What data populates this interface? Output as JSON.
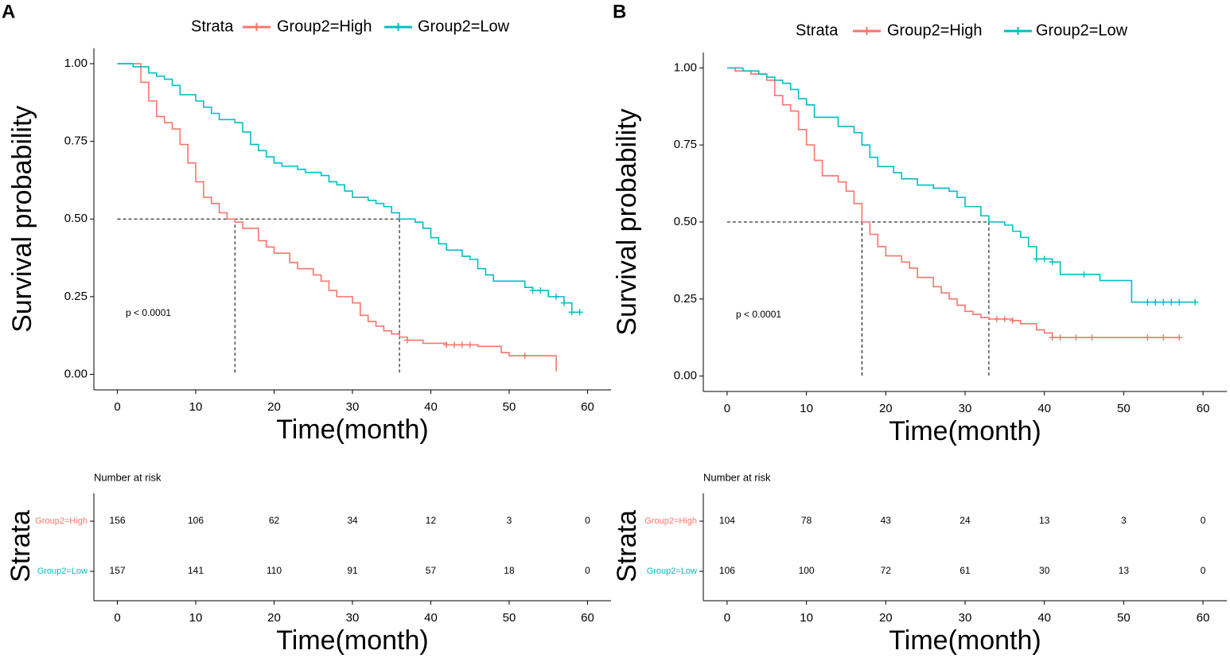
{
  "chart_data": [
    {
      "type": "km",
      "panel": "A",
      "legend_title": "Strata",
      "x_label": "Time(month)",
      "y_label": "Survival probability",
      "annotation": "p < 0.0001",
      "xlim": [
        -3,
        63
      ],
      "ylim": [
        -0.05,
        1.05
      ],
      "xticks": [
        0,
        10,
        20,
        30,
        40,
        50,
        60
      ],
      "yticks": [
        {
          "value": 0,
          "label": "0.00"
        },
        {
          "value": 0.25,
          "label": "0.25"
        },
        {
          "value": 0.5,
          "label": "0.50"
        },
        {
          "value": 0.75,
          "label": "0.75"
        },
        {
          "value": 1,
          "label": "1.00"
        }
      ],
      "median_level": 0.5,
      "median_x": [
        15,
        36
      ],
      "series": [
        {
          "name": "Group2=High",
          "color": "#F8766D",
          "x": [
            0,
            3,
            4,
            5,
            6,
            7,
            8,
            9,
            10,
            11,
            12,
            13,
            14,
            15,
            16,
            18,
            19,
            20,
            22,
            23,
            25,
            26,
            27,
            28,
            30,
            31,
            32,
            33,
            34,
            35,
            36,
            37,
            39,
            42,
            46,
            49,
            50,
            56,
            56
          ],
          "values": [
            1,
            0.94,
            0.88,
            0.83,
            0.81,
            0.79,
            0.74,
            0.68,
            0.62,
            0.57,
            0.55,
            0.52,
            0.5,
            0.49,
            0.47,
            0.43,
            0.41,
            0.39,
            0.36,
            0.34,
            0.32,
            0.3,
            0.27,
            0.25,
            0.23,
            0.19,
            0.17,
            0.155,
            0.14,
            0.13,
            0.12,
            0.11,
            0.1,
            0.095,
            0.09,
            0.07,
            0.06,
            0.06,
            0.01
          ],
          "censor_x": [
            37,
            42,
            43,
            44,
            45,
            52
          ]
        },
        {
          "name": "Group2=Low",
          "color": "#00BFC4",
          "x": [
            0,
            2,
            4,
            5,
            6,
            7,
            8,
            10,
            11,
            12,
            13,
            15,
            16,
            17,
            18,
            19,
            20,
            21,
            23,
            24,
            26,
            27,
            28,
            29,
            30,
            32,
            33,
            34,
            35,
            36,
            38,
            39,
            40,
            41,
            42,
            44,
            45,
            46,
            47,
            48,
            52,
            53,
            55,
            57,
            58,
            59
          ],
          "values": [
            1,
            0.99,
            0.97,
            0.96,
            0.95,
            0.93,
            0.9,
            0.88,
            0.86,
            0.84,
            0.82,
            0.81,
            0.78,
            0.74,
            0.72,
            0.7,
            0.68,
            0.67,
            0.66,
            0.65,
            0.64,
            0.62,
            0.61,
            0.59,
            0.57,
            0.56,
            0.55,
            0.54,
            0.52,
            0.5,
            0.49,
            0.47,
            0.44,
            0.42,
            0.4,
            0.38,
            0.37,
            0.34,
            0.32,
            0.3,
            0.28,
            0.27,
            0.25,
            0.23,
            0.2,
            0.2
          ],
          "censor_x": [
            53,
            54,
            56,
            57,
            58,
            59
          ]
        }
      ]
    },
    {
      "type": "risk_table",
      "title": "Number at risk",
      "x_label": "Time(month)",
      "y_label": "Strata",
      "xlim": [
        -3,
        63
      ],
      "xticks": [
        0,
        10,
        20,
        30,
        40,
        50,
        60
      ],
      "x": [
        0,
        10,
        20,
        30,
        40,
        50,
        60
      ],
      "series": [
        {
          "name": "Group2=High",
          "color": "#F8766D",
          "values": [
            156,
            106,
            62,
            34,
            12,
            3,
            0
          ]
        },
        {
          "name": "Group2=Low",
          "color": "#00BFC4",
          "values": [
            157,
            141,
            110,
            91,
            57,
            18,
            0
          ]
        }
      ]
    },
    {
      "type": "km",
      "panel": "B",
      "legend_title": "Strata",
      "x_label": "Time(month)",
      "y_label": "Survival probability",
      "annotation": "p < 0.0001",
      "xlim": [
        -3,
        63
      ],
      "ylim": [
        -0.05,
        1.05
      ],
      "xticks": [
        0,
        10,
        20,
        30,
        40,
        50,
        60
      ],
      "yticks": [
        {
          "value": 0,
          "label": "0.00"
        },
        {
          "value": 0.25,
          "label": "0.25"
        },
        {
          "value": 0.5,
          "label": "0.50"
        },
        {
          "value": 0.75,
          "label": "0.75"
        },
        {
          "value": 1,
          "label": "1.00"
        }
      ],
      "median_level": 0.5,
      "median_x": [
        17,
        33
      ],
      "series": [
        {
          "name": "Group2=High",
          "color": "#F8766D",
          "x": [
            0,
            1,
            3,
            5,
            6,
            7,
            8,
            9,
            10,
            11,
            12,
            14,
            15,
            16,
            17,
            18,
            19,
            20,
            22,
            23,
            24,
            26,
            27,
            28,
            29,
            30,
            31,
            32,
            33,
            36,
            37,
            39,
            40,
            41,
            57
          ],
          "values": [
            1,
            0.99,
            0.98,
            0.96,
            0.91,
            0.88,
            0.86,
            0.8,
            0.75,
            0.7,
            0.65,
            0.63,
            0.6,
            0.56,
            0.5,
            0.46,
            0.42,
            0.39,
            0.37,
            0.35,
            0.32,
            0.29,
            0.27,
            0.25,
            0.23,
            0.21,
            0.2,
            0.19,
            0.185,
            0.18,
            0.17,
            0.15,
            0.14,
            0.125,
            0.125
          ],
          "censor_x": [
            34,
            35,
            36,
            41,
            42,
            44,
            46,
            53,
            55,
            57
          ]
        },
        {
          "name": "Group2=Low",
          "color": "#00BFC4",
          "x": [
            0,
            2,
            4,
            5,
            6,
            7,
            8,
            9,
            10,
            11,
            14,
            16,
            17,
            18,
            19,
            21,
            22,
            24,
            26,
            28,
            29,
            30,
            32,
            33,
            35,
            36,
            37,
            38,
            39,
            41,
            42,
            47,
            51,
            59
          ],
          "values": [
            1,
            0.99,
            0.98,
            0.97,
            0.96,
            0.95,
            0.93,
            0.9,
            0.88,
            0.84,
            0.81,
            0.79,
            0.75,
            0.71,
            0.68,
            0.66,
            0.64,
            0.62,
            0.61,
            0.6,
            0.58,
            0.55,
            0.52,
            0.5,
            0.49,
            0.47,
            0.45,
            0.42,
            0.38,
            0.37,
            0.33,
            0.31,
            0.24,
            0.24
          ],
          "censor_x": [
            39,
            40,
            41,
            45,
            53,
            54,
            55,
            56,
            57,
            59
          ]
        }
      ]
    },
    {
      "type": "risk_table",
      "title": "Number at risk",
      "x_label": "Time(month)",
      "y_label": "Strata",
      "xlim": [
        -3,
        63
      ],
      "xticks": [
        0,
        10,
        20,
        30,
        40,
        50,
        60
      ],
      "x": [
        0,
        10,
        20,
        30,
        40,
        50,
        60
      ],
      "series": [
        {
          "name": "Group2=High",
          "color": "#F8766D",
          "values": [
            104,
            78,
            43,
            24,
            13,
            3,
            0
          ]
        },
        {
          "name": "Group2=Low",
          "color": "#00BFC4",
          "values": [
            106,
            100,
            72,
            61,
            30,
            13,
            0
          ]
        }
      ]
    }
  ]
}
